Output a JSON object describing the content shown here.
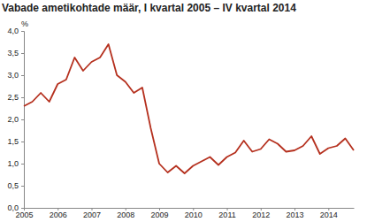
{
  "chart_data": {
    "type": "line",
    "title": "Vabade ametikohtade määr, I kvartal 2005 – IV kvartal 2014",
    "y_label": "%",
    "categories": [
      "2005",
      null,
      null,
      null,
      "2006",
      null,
      null,
      null,
      "2007",
      null,
      null,
      null,
      "2008",
      null,
      null,
      null,
      "2009",
      null,
      null,
      null,
      "2010",
      null,
      null,
      null,
      "2011",
      null,
      null,
      null,
      "2012",
      null,
      null,
      null,
      "2013",
      null,
      null,
      null,
      "2014",
      null,
      null,
      null
    ],
    "values": [
      2.3,
      2.4,
      2.6,
      2.4,
      2.8,
      2.9,
      3.4,
      3.1,
      3.3,
      3.4,
      3.7,
      3.0,
      2.85,
      2.6,
      2.72,
      1.8,
      1.0,
      0.8,
      0.95,
      0.78,
      0.95,
      1.05,
      1.15,
      0.97,
      1.15,
      1.25,
      1.52,
      1.27,
      1.33,
      1.55,
      1.45,
      1.27,
      1.3,
      1.4,
      1.62,
      1.22,
      1.35,
      1.4,
      1.57,
      1.3
    ],
    "color": "#b5301e",
    "ylim": [
      0,
      4
    ],
    "yticks": [
      {
        "value": 0,
        "label": "0,0"
      },
      {
        "value": 0.5,
        "label": "0,5"
      },
      {
        "value": 1,
        "label": "1,0"
      },
      {
        "value": 1.5,
        "label": "1,5"
      },
      {
        "value": 2,
        "label": "2,0"
      },
      {
        "value": 2.5,
        "label": "2,5"
      },
      {
        "value": 3,
        "label": "3,0"
      },
      {
        "value": 3.5,
        "label": "3,5"
      },
      {
        "value": 4,
        "label": "4,0"
      }
    ],
    "grid": false
  }
}
